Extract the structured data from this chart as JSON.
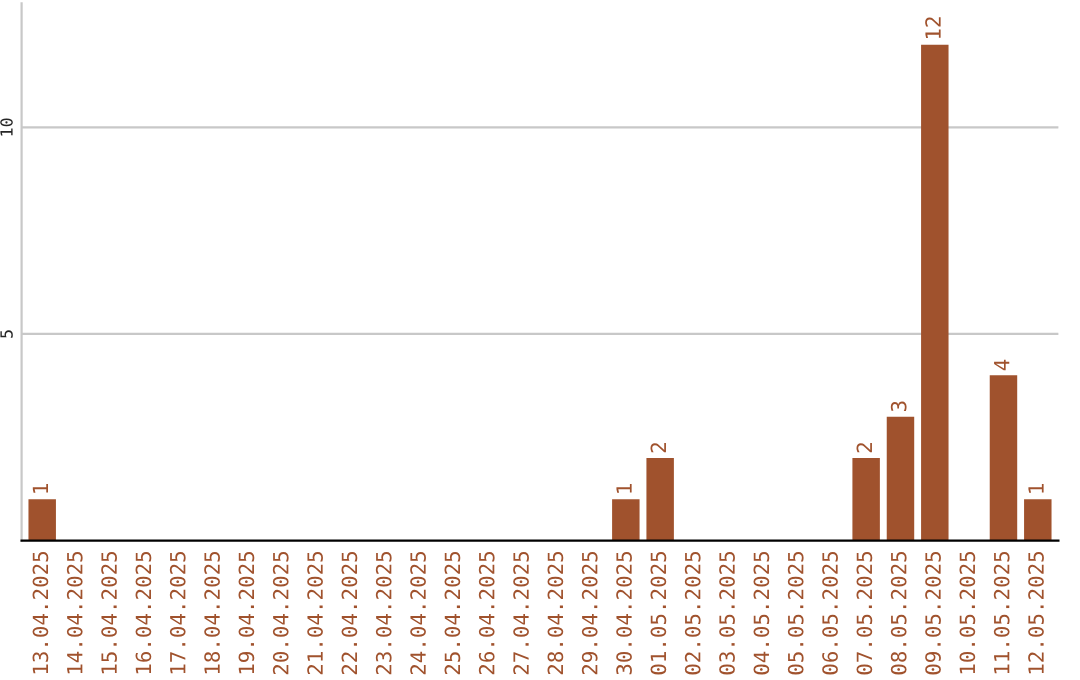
{
  "chart_data": {
    "type": "bar",
    "categories": [
      "13.04.2025",
      "14.04.2025",
      "15.04.2025",
      "16.04.2025",
      "17.04.2025",
      "18.04.2025",
      "19.04.2025",
      "20.04.2025",
      "21.04.2025",
      "22.04.2025",
      "23.04.2025",
      "24.04.2025",
      "25.04.2025",
      "26.04.2025",
      "27.04.2025",
      "28.04.2025",
      "29.04.2025",
      "30.04.2025",
      "01.05.2025",
      "02.05.2025",
      "03.05.2025",
      "04.05.2025",
      "05.05.2025",
      "06.05.2025",
      "07.05.2025",
      "08.05.2025",
      "09.05.2025",
      "10.05.2025",
      "11.05.2025",
      "12.05.2025"
    ],
    "values": [
      1,
      0,
      0,
      0,
      0,
      0,
      0,
      0,
      0,
      0,
      0,
      0,
      0,
      0,
      0,
      0,
      0,
      1,
      2,
      0,
      0,
      0,
      0,
      0,
      2,
      3,
      12,
      0,
      4,
      1
    ],
    "value_labels": [
      "1",
      null,
      null,
      null,
      null,
      null,
      null,
      null,
      null,
      null,
      null,
      null,
      null,
      null,
      null,
      null,
      null,
      "1",
      "2",
      null,
      null,
      null,
      null,
      null,
      "2",
      "3",
      "12",
      null,
      "4",
      "1"
    ],
    "color": "#a0522d",
    "ylim": [
      0,
      13
    ],
    "yticks": [
      5,
      10
    ],
    "grid": "y",
    "legend": false
  }
}
